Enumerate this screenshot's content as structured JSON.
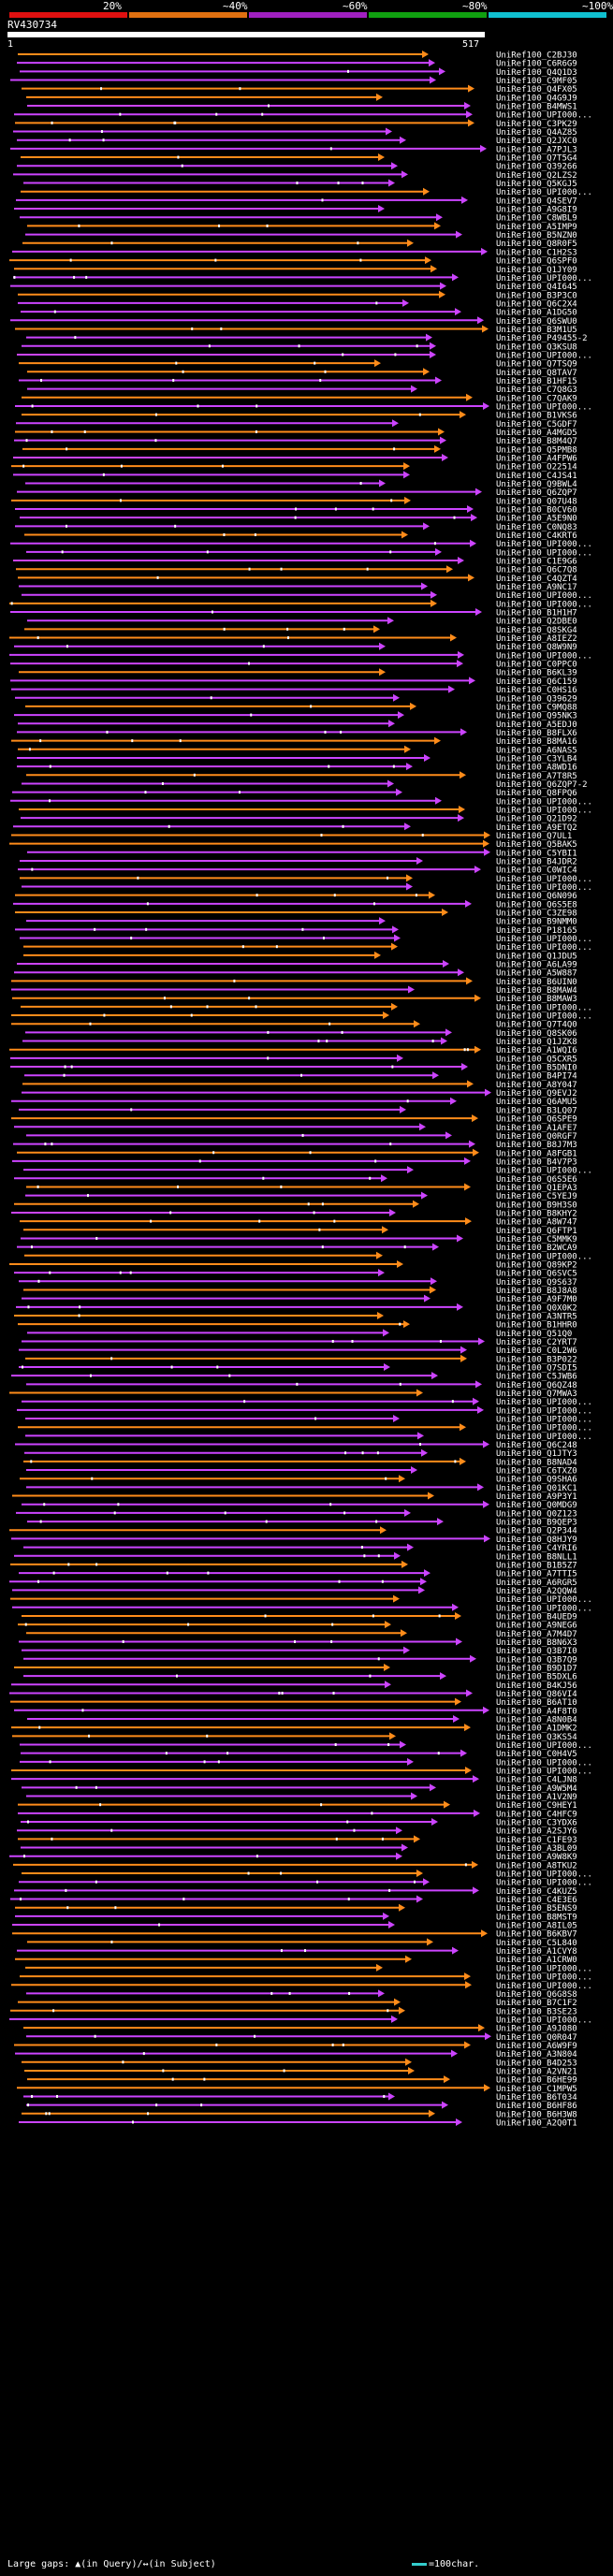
{
  "legend": [
    {
      "label": "20%",
      "color": "#e01010"
    },
    {
      "label": "~40%",
      "color": "#e07010"
    },
    {
      "label": "~60%",
      "color": "#a020c0"
    },
    {
      "label": "~80%",
      "color": "#10a010"
    },
    {
      "label": "~100%",
      "color": "#10c0d0"
    }
  ],
  "query": {
    "id": "RV430734",
    "start": "1",
    "end": "517"
  },
  "footer": {
    "gaps": "Large gaps: ▲(in Query)/↔(in Subject)",
    "scale": "=100char."
  },
  "colors": {
    "orange": "#ff8c1a",
    "purple": "#cc44ff"
  },
  "hits": [
    "UniRef100_C2BJ30",
    "UniRef100_C6R6G9",
    "UniRef100_Q4Q1D3",
    "UniRef100_C9MF05",
    "UniRef100_Q4FX05",
    "UniRef100_Q4G9J9",
    "UniRef100_B4MWS1",
    "UniRef100_UPI000...",
    "UniRef100_C3PK29",
    "UniRef100_Q4AZ85",
    "UniRef100_Q2JXC0",
    "UniRef100_A7PJL3",
    "UniRef100_Q7T5G4",
    "UniRef100_Q39266",
    "UniRef100_Q2LZS2",
    "UniRef100_Q5KGJ5",
    "UniRef100_UPI000...",
    "UniRef100_Q4SEV7",
    "UniRef100_A9G8I9",
    "UniRef100_C8WBL9",
    "UniRef100_A5IMP9",
    "UniRef100_B5NZN0",
    "UniRef100_Q8R0F5",
    "UniRef100_C1H2S3",
    "UniRef100_Q6SPF0",
    "UniRef100_Q1JY09",
    "UniRef100_UPI000...",
    "UniRef100_Q4I645",
    "UniRef100_B3P3C0",
    "UniRef100_Q6C2X4",
    "UniRef100_A1DG50",
    "UniRef100_Q6SWU0",
    "UniRef100_B3M1U5",
    "UniRef100_P49455-2",
    "UniRef100_Q3KSU8",
    "UniRef100_UPI000...",
    "UniRef100_Q7TSQ9",
    "UniRef100_Q8TAV7",
    "UniRef100_B1HF15",
    "UniRef100_C7Q8G3",
    "UniRef100_C7QAK9",
    "UniRef100_UPI000...",
    "UniRef100_B1VKS6",
    "UniRef100_C5GDF7",
    "UniRef100_A4MGD5",
    "UniRef100_B8M4Q7",
    "UniRef100_Q5PMB8",
    "UniRef100_A4FPW6",
    "UniRef100_O22514",
    "UniRef100_C4JS41",
    "UniRef100_Q9BWL4",
    "UniRef100_Q6ZQP7",
    "UniRef100_Q07U48",
    "UniRef100_B0CV60",
    "UniRef100_A5E9N0",
    "UniRef100_C0NQ83",
    "UniRef100_C4KRT6",
    "UniRef100_UPI000...",
    "UniRef100_UPI000...",
    "UniRef100_C1E9G6",
    "UniRef100_Q6C7Q8",
    "UniRef100_C4QZT4",
    "UniRef100_A9NC17",
    "UniRef100_UPI000...",
    "UniRef100_UPI000...",
    "UniRef100_B1H1H7",
    "UniRef100_Q2DBE0",
    "UniRef100_Q8SKG4",
    "UniRef100_A8IEZ2",
    "UniRef100_Q8W9N9",
    "UniRef100_UPI000...",
    "UniRef100_C0PPC0",
    "UniRef100_B6KL39",
    "UniRef100_Q6C159",
    "UniRef100_C0HS16",
    "UniRef100_Q39629",
    "UniRef100_C9MQ88",
    "UniRef100_Q95NK3",
    "UniRef100_A5EDJ0",
    "UniRef100_B8FLX6",
    "UniRef100_B8MA16",
    "UniRef100_A6NAS5",
    "UniRef100_C3YLB4",
    "UniRef100_A8WD16",
    "UniRef100_A7T8R5",
    "UniRef100_Q6ZQP7-2",
    "UniRef100_Q8FPQ6",
    "UniRef100_UPI000...",
    "UniRef100_UPI000...",
    "UniRef100_Q21D92",
    "UniRef100_A9ETQ2",
    "UniRef100_Q7UL1",
    "UniRef100_Q5BAK5",
    "UniRef100_C5YBI1",
    "UniRef100_B4JDR2",
    "UniRef100_C0WIC4",
    "UniRef100_UPI000...",
    "UniRef100_UPI000...",
    "UniRef100_Q6N096",
    "UniRef100_Q6S5E8",
    "UniRef100_C3ZE98",
    "UniRef100_B9NMM0",
    "UniRef100_P18165",
    "UniRef100_UPI000...",
    "UniRef100_UPI000...",
    "UniRef100_Q1JDU5",
    "UniRef100_A6LA99",
    "UniRef100_A5W887",
    "UniRef100_B6UIN0",
    "UniRef100_B8MAW4",
    "UniRef100_B8MAW3",
    "UniRef100_UPI000...",
    "UniRef100_UPI000...",
    "UniRef100_Q7T4Q0",
    "UniRef100_Q8SK06",
    "UniRef100_Q1JZK8",
    "UniRef100_A1WQI6",
    "UniRef100_Q5CXR5",
    "UniRef100_B5DNI0",
    "UniRef100_B4PI74",
    "UniRef100_A8Y047",
    "UniRef100_Q9EVJ2",
    "UniRef100_Q6AMU5",
    "UniRef100_B3LQ07",
    "UniRef100_Q6SPE9",
    "UniRef100_A1AFE7",
    "UniRef100_Q0RGF7",
    "UniRef100_B8J7M3",
    "UniRef100_A8FGB1",
    "UniRef100_B4V7P3",
    "UniRef100_UPI000...",
    "UniRef100_Q6S5E6",
    "UniRef100_Q1EPA3",
    "UniRef100_C5YEJ9",
    "UniRef100_B9H3S0",
    "UniRef100_B8KHY2",
    "UniRef100_A8W747",
    "UniRef100_Q6FTP1",
    "UniRef100_C5MMK9",
    "UniRef100_B2WCA9",
    "UniRef100_UPI000...",
    "UniRef100_Q89KP2",
    "UniRef100_Q6SVC5",
    "UniRef100_Q9S637",
    "UniRef100_B8J8A8",
    "UniRef100_A9F7M0",
    "UniRef100_Q0X0K2",
    "UniRef100_A3NTR5",
    "UniRef100_B1HHR0",
    "UniRef100_Q51Q0",
    "UniRef100_C2YRT7",
    "UniRef100_C0L2W6",
    "UniRef100_B3P022",
    "UniRef100_Q7SDI5",
    "UniRef100_C5JWB6",
    "UniRef100_Q6QZ48",
    "UniRef100_Q7MWA3",
    "UniRef100_UPI000...",
    "UniRef100_UPI000...",
    "UniRef100_UPI000...",
    "UniRef100_UPI000...",
    "UniRef100_UPI000...",
    "UniRef100_Q6C248",
    "UniRef100_Q1JTY3",
    "UniRef100_B8NAD4",
    "UniRef100_C6TXZ0",
    "UniRef100_Q9SHA6",
    "UniRef100_Q01KC1",
    "UniRef100_A9P3Y1",
    "UniRef100_Q0MDG9",
    "UniRef100_Q0Z123",
    "UniRef100_B9QEP3",
    "UniRef100_Q2P344",
    "UniRef100_Q8HJY9",
    "UniRef100_C4YRI6",
    "UniRef100_B8NLL1",
    "UniRef100_B1B5Z7",
    "UniRef100_A7TTI5",
    "UniRef100_A6RGR5",
    "UniRef100_A2QQW4",
    "UniRef100_UPI000...",
    "UniRef100_UPI000...",
    "UniRef100_B4UED9",
    "UniRef100_A9NEG6",
    "UniRef100_A7M4D7",
    "UniRef100_B8N6X3",
    "UniRef100_Q3B7I0",
    "UniRef100_Q3B7Q9",
    "UniRef100_B9D1D7",
    "UniRef100_B5DXL6",
    "UniRef100_B4KJ56",
    "UniRef100_Q86VI4",
    "UniRef100_B6AT10",
    "UniRef100_A4F8T0",
    "UniRef100_A8N0B4",
    "UniRef100_A1DMK2",
    "UniRef100_Q3KS54",
    "UniRef100_UPI000...",
    "UniRef100_C0H4V5",
    "UniRef100_UPI000...",
    "UniRef100_UPI000...",
    "UniRef100_C4LJN8",
    "UniRef100_A9W5M4",
    "UniRef100_A1V2N9",
    "UniRef100_C9HEY1",
    "UniRef100_C4HFC9",
    "UniRef100_C3YDX6",
    "UniRef100_A2SJY6",
    "UniRef100_C1FE93",
    "UniRef100_A3BL09",
    "UniRef100_A9W8K9",
    "UniRef100_A8TKU2",
    "UniRef100_UPI000...",
    "UniRef100_UPI000...",
    "UniRef100_C4KUZ5",
    "UniRef100_C4E3E6",
    "UniRef100_B5ENS9",
    "UniRef100_B8MST9",
    "UniRef100_A8IL05",
    "UniRef100_B6KBV7",
    "UniRef100_C5L840",
    "UniRef100_A1CVY8",
    "UniRef100_A1CRW0",
    "UniRef100_UPI000...",
    "UniRef100_UPI000...",
    "UniRef100_UPI000...",
    "UniRef100_Q6G8S8",
    "UniRef100_B7C1F2",
    "UniRef100_B3SE23",
    "UniRef100_UPI000...",
    "UniRef100_A9J080",
    "UniRef100_Q0R047",
    "UniRef100_A6W9F9",
    "UniRef100_A3N804",
    "UniRef100_B4D253",
    "UniRef100_A2VN21",
    "UniRef100_B6HE99",
    "UniRef100_C1MPW5",
    "UniRef100_B6T034",
    "UniRef100_B6HF86",
    "UniRef100_B6H3W8",
    "UniRef100_A2Q0T1"
  ]
}
